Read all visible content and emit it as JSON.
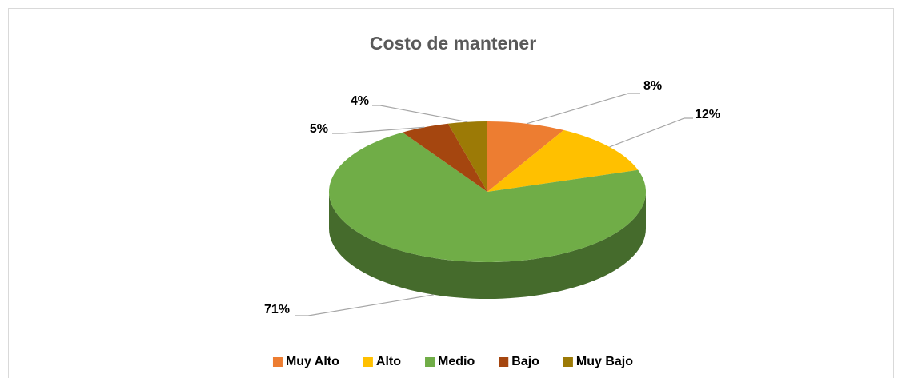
{
  "chart_data": {
    "type": "pie",
    "title": "Costo de mantener",
    "categories": [
      "Muy Alto",
      "Alto",
      "Medio",
      "Bajo",
      "Muy Bajo"
    ],
    "values": [
      8,
      12,
      71,
      5,
      4
    ],
    "value_labels": [
      "8%",
      "12%",
      "71%",
      "5%",
      "4%"
    ],
    "colors": [
      "#ed7d31",
      "#ffc000",
      "#70ad47",
      "#a5460f",
      "#9c7a06"
    ],
    "legend": "bottom"
  }
}
